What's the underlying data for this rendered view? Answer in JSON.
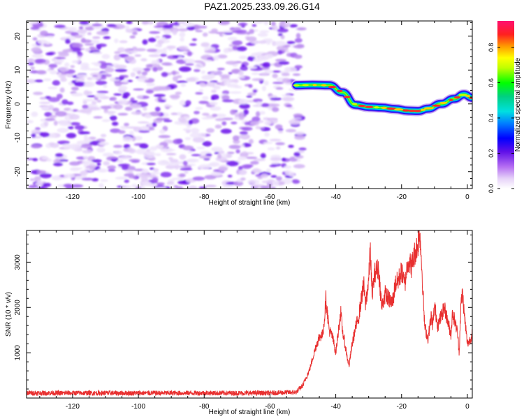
{
  "title": "PAZ1.2025.233.09.26.G14",
  "chart_data": [
    {
      "type": "heatmap",
      "name": "spectrogram",
      "xlabel": "Height of straight line (km)",
      "ylabel": "Frequency (Hz)",
      "xlim": [
        -134,
        1.5
      ],
      "ylim": [
        -25,
        24.5
      ],
      "xticks": [
        -120,
        -100,
        -80,
        -60,
        -40,
        -20,
        0
      ],
      "yticks": [
        -20,
        -10,
        0,
        10,
        20
      ],
      "noise_region_km": [
        -133,
        -50
      ],
      "signal_track": {
        "x": [
          -52,
          -47,
          -42,
          -38,
          -34,
          -30,
          -26,
          -22,
          -18,
          -15,
          -12,
          -8,
          -4,
          -1,
          1.5
        ],
        "freq_hz": [
          5.5,
          5.6,
          5.5,
          3.4,
          -0.3,
          -0.9,
          -1.1,
          -1.5,
          -2.0,
          -2.1,
          -1.4,
          0.0,
          1.5,
          2.8,
          1.8
        ]
      },
      "colorbar": {
        "label": "Normalized spectral amplitude",
        "range": [
          0.0,
          0.95
        ],
        "ticks": [
          "0.0",
          "0.2",
          "0.4",
          "0.6",
          "0.8"
        ]
      }
    },
    {
      "type": "line",
      "name": "snr",
      "xlabel": "Height of straight line (km)",
      "ylabel": "SNR (10 * v/v)",
      "xlim": [
        -134,
        1.5
      ],
      "ylim": [
        0,
        3700
      ],
      "xticks": [
        -120,
        -100,
        -80,
        -60,
        -40,
        -20,
        0
      ],
      "yticks": [
        1000,
        2000,
        3000
      ],
      "color": "#e83030",
      "series": [
        {
          "name": "SNR",
          "x": [
            -134,
            -60,
            -52,
            -50,
            -48,
            -46,
            -45,
            -44,
            -43.5,
            -43,
            -42,
            -41,
            -40,
            -39,
            -38.5,
            -38,
            -37,
            -36,
            -35,
            -34,
            -33,
            -32,
            -31.5,
            -31,
            -30,
            -29.5,
            -29,
            -28,
            -27,
            -26,
            -25,
            -24,
            -23,
            -22.5,
            -22,
            -21,
            -20,
            -19,
            -18.5,
            -18,
            -17,
            -16,
            -15.5,
            -15,
            -14.5,
            -14,
            -13,
            -12,
            -11,
            -10.5,
            -10,
            -9,
            -8,
            -7,
            -6,
            -5,
            -4.5,
            -4,
            -3,
            -2.5,
            -2,
            -1.5,
            -1,
            0,
            1,
            1.5
          ],
          "y": [
            110,
            110,
            130,
            280,
            620,
            1150,
            1350,
            1400,
            1700,
            2200,
            1500,
            1350,
            1000,
            1600,
            1900,
            1500,
            1100,
            700,
            1200,
            1550,
            1800,
            2300,
            2500,
            2050,
            2600,
            3300,
            2300,
            2800,
            2850,
            2000,
            2300,
            2200,
            2100,
            2200,
            2500,
            2600,
            2800,
            2500,
            2800,
            3050,
            2900,
            3200,
            3300,
            3400,
            3700,
            3100,
            1600,
            1300,
            1800,
            1600,
            2050,
            1600,
            1800,
            2000,
            1700,
            1400,
            1900,
            1750,
            1450,
            1000,
            2000,
            2350,
            1900,
            1200,
            1300,
            1450
          ]
        }
      ]
    }
  ]
}
